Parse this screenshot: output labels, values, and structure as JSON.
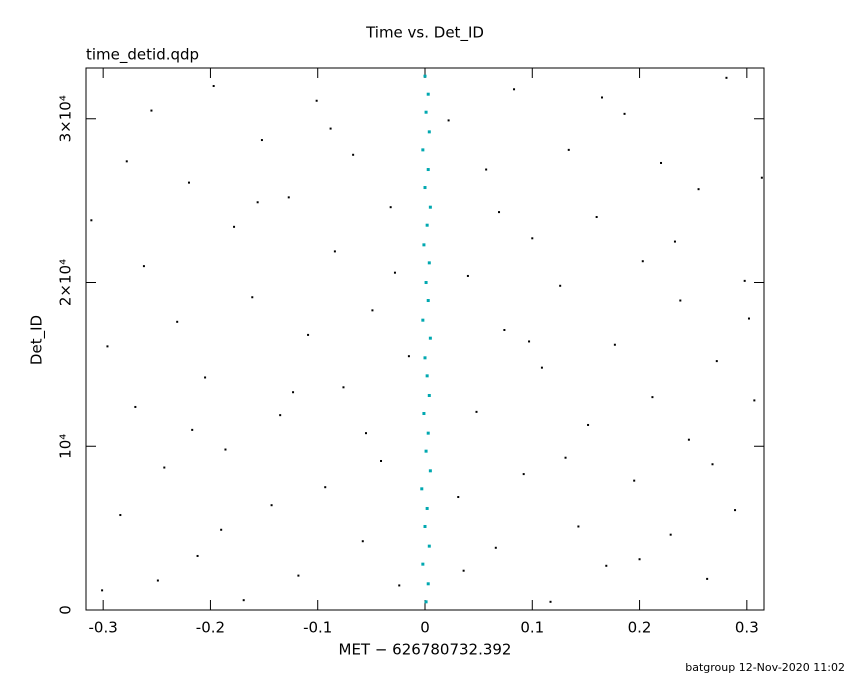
{
  "chart_data": {
    "type": "scatter",
    "title": "Time vs. Det_ID",
    "subtitle": "time_detid.qdp",
    "x_label": "MET − 626780732.392",
    "y_label": "Det_ID",
    "footer": "batgroup 12-Nov-2020 11:02",
    "xlim": [
      -0.316,
      0.316
    ],
    "ylim": [
      0,
      33100
    ],
    "xticks": [
      -0.3,
      -0.2,
      -0.1,
      0,
      0.1,
      0.2,
      0.3
    ],
    "yticks": [
      0,
      {
        "value": 10000,
        "label": "10⁴"
      },
      {
        "value": 20000,
        "label": "2×10⁴"
      },
      {
        "value": 30000,
        "label": "3×10⁴"
      }
    ],
    "grid": false,
    "series": [
      {
        "color": "#000000",
        "x": [
          -0.301,
          -0.284,
          -0.27,
          -0.262,
          -0.255,
          -0.243,
          -0.231,
          -0.22,
          -0.212,
          -0.205,
          -0.197,
          -0.186,
          -0.178,
          -0.169,
          -0.161,
          -0.152,
          -0.143,
          -0.135,
          -0.127,
          -0.118,
          -0.109,
          -0.101,
          -0.093,
          -0.084,
          -0.076,
          -0.067,
          -0.058,
          -0.049,
          -0.041,
          -0.032,
          -0.024,
          -0.015,
          0.022,
          0.031,
          0.04,
          0.048,
          0.057,
          0.066,
          0.074,
          0.083,
          0.092,
          0.1,
          0.109,
          0.117,
          0.126,
          0.134,
          0.143,
          0.152,
          0.16,
          0.169,
          0.177,
          0.186,
          0.195,
          0.203,
          0.212,
          0.22,
          0.229,
          0.238,
          0.246,
          0.255,
          0.263,
          0.272,
          0.281,
          0.289,
          0.298,
          0.307,
          0.314,
          -0.311,
          -0.296,
          -0.278,
          -0.249,
          -0.217,
          -0.19,
          -0.156,
          -0.123,
          -0.088,
          -0.055,
          -0.028,
          0.036,
          0.069,
          0.097,
          0.131,
          0.165,
          0.2,
          0.233,
          0.268,
          0.302
        ],
        "y": [
          1200,
          5800,
          12400,
          21000,
          30500,
          8700,
          17600,
          26100,
          3300,
          14200,
          32000,
          9800,
          23400,
          600,
          19100,
          28700,
          6400,
          11900,
          25200,
          2100,
          16800,
          31100,
          7500,
          21900,
          13600,
          27800,
          4200,
          18300,
          9100,
          24600,
          1500,
          15500,
          29900,
          6900,
          20400,
          12100,
          26900,
          3800,
          17100,
          31800,
          8300,
          22700,
          14800,
          500,
          19800,
          28100,
          5100,
          11300,
          24000,
          2700,
          16200,
          30300,
          7900,
          21300,
          13000,
          27300,
          4600,
          18900,
          10400,
          25700,
          1900,
          15200,
          32500,
          6100,
          20100,
          12800,
          26400,
          23800,
          16100,
          27400,
          1800,
          11000,
          4900,
          24900,
          13300,
          29400,
          10800,
          20600,
          2400,
          24300,
          16400,
          9300,
          31300,
          3100,
          22500,
          8900,
          17800
        ]
      },
      {
        "color": "#00a8b0",
        "x": [
          0.001,
          0.003,
          -0.002,
          0.004,
          0.0,
          0.002,
          -0.003,
          0.005,
          0.001,
          0.003,
          -0.001,
          0.004,
          0.002,
          0.0,
          0.005,
          -0.002,
          0.003,
          0.001,
          0.004,
          -0.001,
          0.002,
          0.005,
          0.0,
          0.003,
          -0.002,
          0.004,
          0.001,
          0.003,
          0.0
        ],
        "y": [
          500,
          1600,
          2800,
          3900,
          5100,
          6200,
          7400,
          8500,
          9700,
          10800,
          12000,
          13100,
          14300,
          15400,
          16600,
          17700,
          18900,
          20000,
          21200,
          22300,
          23500,
          24600,
          25800,
          26900,
          28100,
          29200,
          30400,
          31500,
          32600
        ]
      }
    ]
  }
}
